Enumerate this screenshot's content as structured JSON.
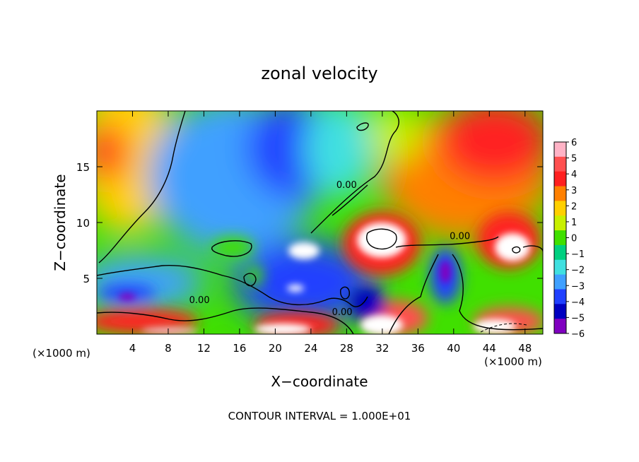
{
  "chart_data": {
    "type": "heatmap",
    "title": "zonal velocity",
    "xlabel": "X−coordinate",
    "ylabel": "Z−coordinate",
    "x_unit_note": "(×1000 m)",
    "y_unit_note": "(×1000 m)",
    "xlim": [
      0,
      50
    ],
    "ylim": [
      0,
      20
    ],
    "x_ticks": [
      4,
      8,
      12,
      16,
      20,
      24,
      28,
      32,
      36,
      40,
      44,
      48
    ],
    "y_ticks": [
      5,
      10,
      15
    ],
    "colorbar": {
      "levels": [
        6,
        5,
        4,
        3,
        2,
        1,
        0,
        -1,
        -2,
        -3,
        -4,
        -5,
        -6
      ],
      "labels": [
        "6",
        "5",
        "4",
        "3",
        "2",
        "1",
        "0",
        "−1",
        "−2",
        "−3",
        "−4",
        "−5",
        "−6"
      ],
      "colors": [
        "#ffb3c6",
        "#ff5050",
        "#ff2020",
        "#ff8000",
        "#ffd000",
        "#c8f000",
        "#40e000",
        "#00d080",
        "#40e0e0",
        "#3fa0ff",
        "#2040ff",
        "#0000c0",
        "#8000c0"
      ]
    },
    "contour_labels": [
      {
        "text": "0.00",
        "x": 28,
        "z": 13.1
      },
      {
        "text": "0.00",
        "x": 40.7,
        "z": 8.5
      },
      {
        "text": "0.00",
        "x": 11.5,
        "z": 2.8
      },
      {
        "text": "0.00",
        "x": 27.5,
        "z": 1.7
      }
    ],
    "contour_interval_text": "CONTOUR INTERVAL = 1.000E+01"
  }
}
